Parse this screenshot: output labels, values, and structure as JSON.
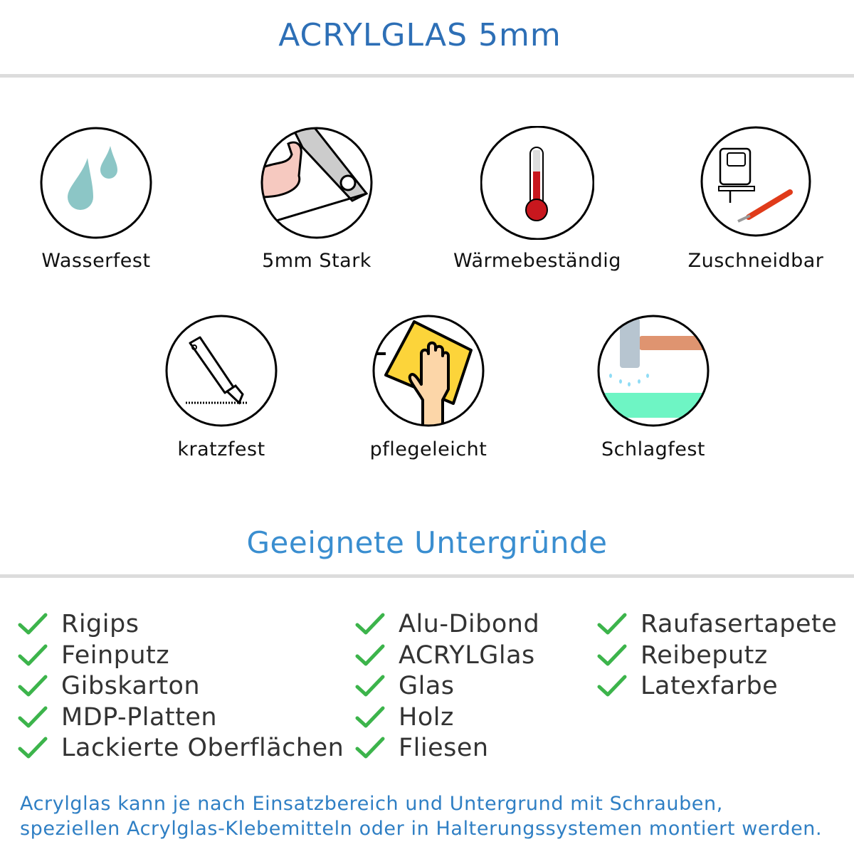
{
  "header": {
    "title": "ACRYLGLAS 5mm"
  },
  "features": [
    {
      "label": "Wasserfest",
      "icon": "water-drops-icon"
    },
    {
      "label": "5mm Stark",
      "icon": "strong-arm-icon"
    },
    {
      "label": "Wärmebeständig",
      "icon": "thermometer-icon"
    },
    {
      "label": "Zuschneidbar",
      "icon": "jigsaw-cutter-icon"
    },
    {
      "label": "kratzfest",
      "icon": "cutter-knife-icon"
    },
    {
      "label": "pflegeleicht",
      "icon": "hand-cloth-icon"
    },
    {
      "label": "Schlagfest",
      "icon": "hammer-impact-icon"
    }
  ],
  "surfaces": {
    "heading": "Geeignete Untergründe",
    "check_color": "#3cb44b",
    "columns": [
      [
        "Rigips",
        "Feinputz",
        "Gibskarton",
        "MDP-Platten",
        "Lackierte Oberflächen"
      ],
      [
        "Alu-Dibond",
        "ACRYLGlas",
        "Glas",
        "Holz",
        "Fliesen"
      ],
      [
        "Raufasertapete",
        "Reibeputz",
        "Latexfarbe"
      ]
    ]
  },
  "note": {
    "line1": "Acrylglas kann je nach Einsatzbereich und Untergrund mit Schrauben,",
    "line2": "speziellen Acrylglas-Klebemitteln oder in Halterungssystemen montiert werden."
  },
  "colors": {
    "title": "#2d6fb6",
    "heading": "#3a8ed0",
    "note": "#2f7fc4"
  }
}
